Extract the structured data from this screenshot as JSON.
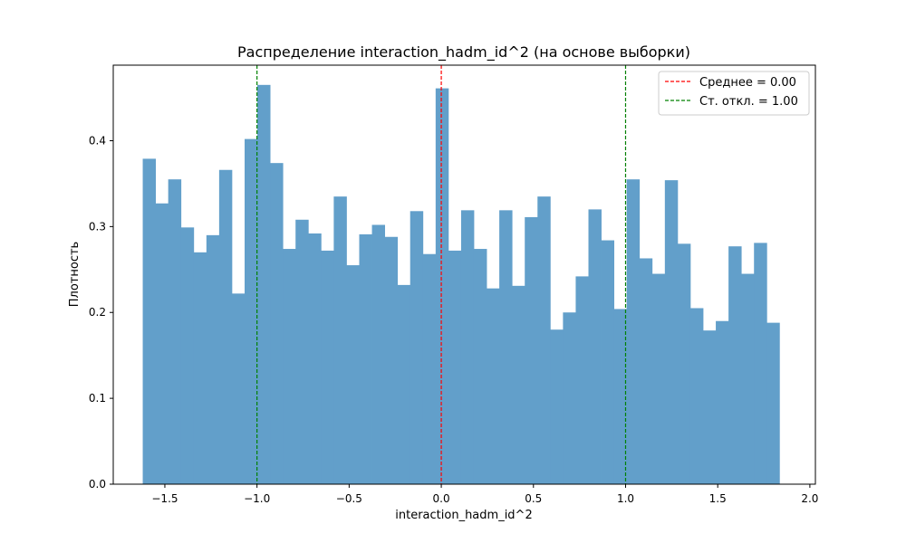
{
  "chart_data": {
    "type": "bar",
    "title": "Распределение interaction_hadm_id^2 (на основе выборки)",
    "xlabel": "interaction_hadm_id^2",
    "ylabel": "Плотность",
    "xlim": [
      -1.78,
      2.03
    ],
    "ylim": [
      0,
      0.488
    ],
    "xticks": [
      -1.5,
      -1.0,
      -0.5,
      0.0,
      0.5,
      1.0,
      1.5,
      2.0
    ],
    "xtick_labels": [
      "−1.5",
      "−1.0",
      "−0.5",
      "0.0",
      "0.5",
      "1.0",
      "1.5",
      "2.0"
    ],
    "yticks": [
      0.0,
      0.1,
      0.2,
      0.3,
      0.4
    ],
    "ytick_labels": [
      "0.0",
      "0.1",
      "0.2",
      "0.3",
      "0.4"
    ],
    "bin_start": -1.62,
    "bin_width": 0.0691,
    "values": [
      0.379,
      0.327,
      0.355,
      0.299,
      0.27,
      0.29,
      0.366,
      0.222,
      0.402,
      0.465,
      0.374,
      0.274,
      0.308,
      0.292,
      0.272,
      0.335,
      0.255,
      0.291,
      0.302,
      0.288,
      0.232,
      0.318,
      0.268,
      0.461,
      0.272,
      0.319,
      0.274,
      0.228,
      0.319,
      0.231,
      0.311,
      0.335,
      0.18,
      0.2,
      0.242,
      0.32,
      0.284,
      0.204,
      0.355,
      0.263,
      0.245,
      0.354,
      0.28,
      0.205,
      0.179,
      0.19,
      0.277,
      0.245,
      0.281,
      0.188
    ],
    "bar_color": "#629fca",
    "vlines": [
      {
        "x": 0.0,
        "color": "#ff0000",
        "label": "Среднее = 0.00"
      },
      {
        "x": -1.0,
        "color": "#008000",
        "label": "Ст. откл. = 1.00"
      },
      {
        "x": 1.0,
        "color": "#008000",
        "label": ""
      }
    ],
    "legend": {
      "position": "top-right",
      "entries": [
        {
          "label": "Среднее = 0.00",
          "color": "#ff0000"
        },
        {
          "label": "Ст. откл. = 1.00",
          "color": "#008000"
        }
      ]
    }
  }
}
